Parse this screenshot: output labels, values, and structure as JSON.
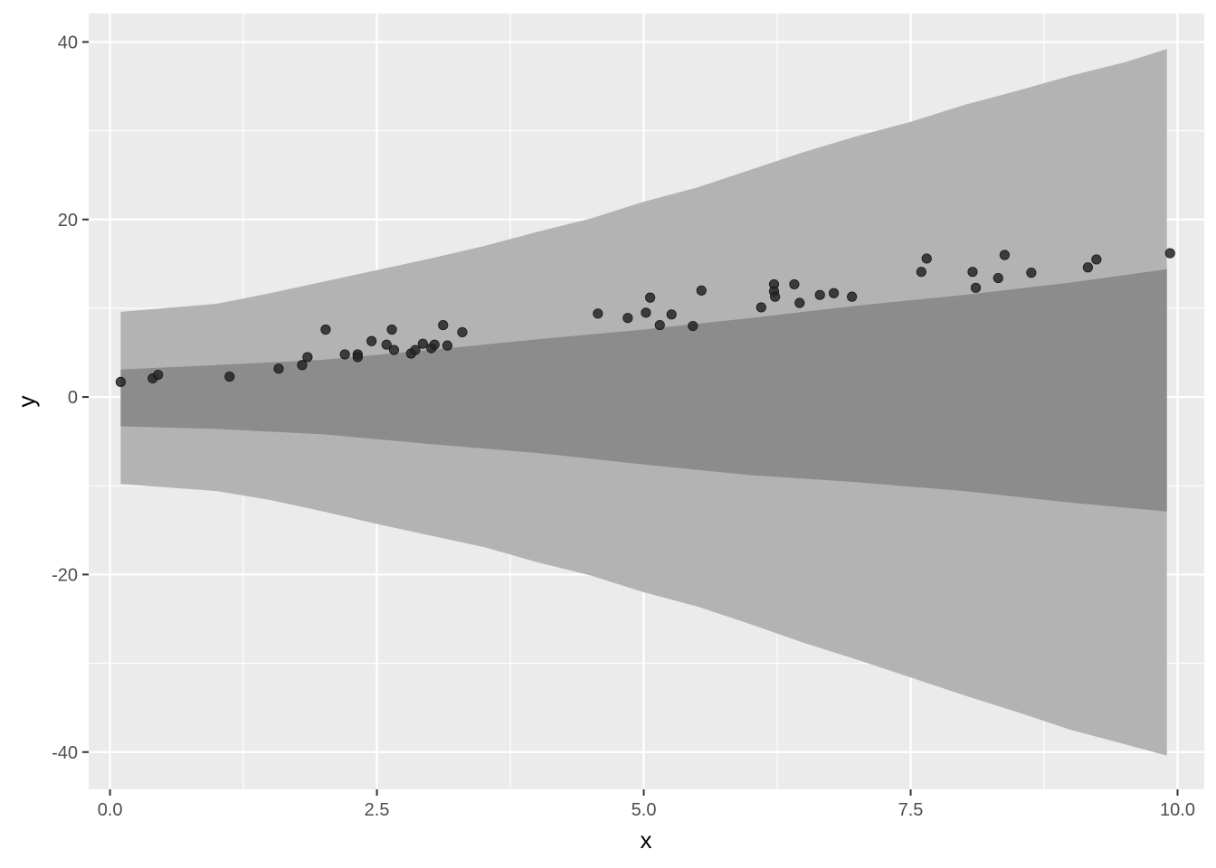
{
  "chart_data": {
    "type": "scatter",
    "title": "",
    "xlabel": "x",
    "ylabel": "y",
    "xlim": [
      -0.2,
      10.25
    ],
    "ylim": [
      -44.2,
      43.2
    ],
    "x_ticks": [
      0.0,
      2.5,
      5.0,
      7.5,
      10.0
    ],
    "x_tick_labels": [
      "0.0",
      "2.5",
      "5.0",
      "7.5",
      "10.0"
    ],
    "y_ticks": [
      -40,
      -20,
      0,
      20,
      40
    ],
    "y_tick_labels": [
      "-40",
      "-20",
      "0",
      "20",
      "40"
    ],
    "grid": true,
    "legend": "none",
    "colors": {
      "panel_background": "#ebebeb",
      "grid_line": "#ffffff",
      "outer_band": "#b3b3b3",
      "inner_band": "#8c8c8c",
      "point": "#262626"
    },
    "bands": [
      {
        "x": [
          0.1,
          1.0,
          1.5,
          2.0,
          2.5,
          3.0,
          3.5,
          4.0,
          4.5,
          5.0,
          5.5,
          6.0,
          6.5,
          7.0,
          7.5,
          8.0,
          8.5,
          9.0,
          9.5,
          9.9
        ],
        "lower": [
          -9.8,
          -10.6,
          -11.6,
          -12.9,
          -14.3,
          -15.6,
          -16.9,
          -18.6,
          -20.1,
          -22.0,
          -23.6,
          -25.6,
          -27.7,
          -29.6,
          -31.6,
          -33.6,
          -35.5,
          -37.5,
          -39.1,
          -40.4
        ],
        "upper": [
          9.6,
          10.5,
          11.7,
          13.0,
          14.3,
          15.6,
          17.0,
          18.6,
          20.1,
          22.0,
          23.6,
          25.6,
          27.6,
          29.4,
          31.0,
          32.9,
          34.5,
          36.2,
          37.7,
          39.2
        ]
      },
      {
        "x": [
          0.1,
          1.0,
          2.0,
          3.0,
          4.0,
          5.0,
          6.0,
          7.0,
          8.0,
          9.0,
          9.9
        ],
        "lower": [
          -3.3,
          -3.6,
          -4.2,
          -5.3,
          -6.3,
          -7.6,
          -8.8,
          -9.6,
          -10.6,
          -11.9,
          -12.9
        ],
        "upper": [
          3.1,
          3.6,
          4.2,
          5.3,
          6.5,
          7.6,
          8.9,
          10.3,
          11.5,
          12.9,
          14.4
        ]
      }
    ],
    "points": {
      "x": [
        0.1,
        0.4,
        0.45,
        1.12,
        1.58,
        1.8,
        1.85,
        2.02,
        2.2,
        2.32,
        2.32,
        2.45,
        2.59,
        2.64,
        2.66,
        2.82,
        2.86,
        2.93,
        3.01,
        3.04,
        3.12,
        3.16,
        3.3,
        4.57,
        4.85,
        5.02,
        5.06,
        5.15,
        5.26,
        5.46,
        5.54,
        6.1,
        6.22,
        6.22,
        6.23,
        6.41,
        6.46,
        6.65,
        6.78,
        6.95,
        7.6,
        7.65,
        8.08,
        8.11,
        8.32,
        8.38,
        8.63,
        9.16,
        9.24,
        9.93
      ],
      "y": [
        1.7,
        2.1,
        2.5,
        2.3,
        3.2,
        3.6,
        4.5,
        7.6,
        4.8,
        4.8,
        4.5,
        6.3,
        5.9,
        7.6,
        5.3,
        4.9,
        5.3,
        6.0,
        5.5,
        5.9,
        8.1,
        5.8,
        7.3,
        9.4,
        8.9,
        9.5,
        11.2,
        8.1,
        9.3,
        8.0,
        12.0,
        10.1,
        12.7,
        11.9,
        11.3,
        12.7,
        10.6,
        11.5,
        11.7,
        11.3,
        14.1,
        15.6,
        14.1,
        12.3,
        13.4,
        16.0,
        14.0,
        14.6,
        15.5,
        16.2
      ]
    }
  }
}
